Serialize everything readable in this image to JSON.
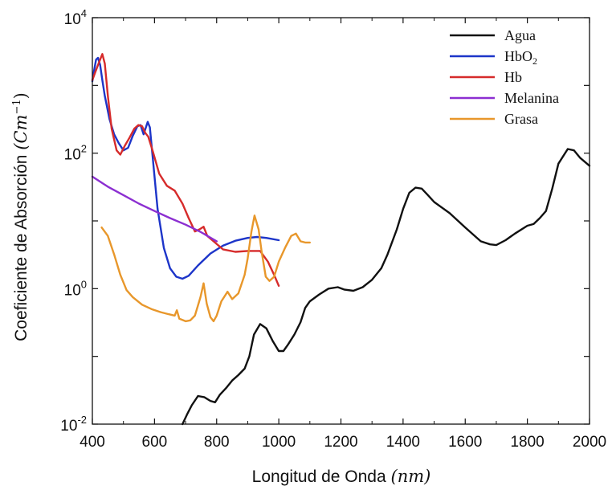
{
  "chart_data": {
    "type": "line",
    "xlabel": "Longitud de Onda",
    "xlabel_unit": "(nm)",
    "ylabel": "Coeficiente de Absorción",
    "ylabel_unit": "(Cm",
    "ylabel_unit_exp": "−1",
    "ylabel_unit_close": ")",
    "xlim": [
      400,
      2000
    ],
    "ylim": [
      0.01,
      10000
    ],
    "yscale": "log",
    "grid": false,
    "legend_position": "top-right",
    "x_ticks": [
      400,
      600,
      800,
      1000,
      1200,
      1400,
      1600,
      1800,
      2000
    ],
    "y_ticks": [
      {
        "value": 0.01,
        "base": "10",
        "exp": "-2"
      },
      {
        "value": 1,
        "base": "10",
        "exp": "0"
      },
      {
        "value": 100,
        "base": "10",
        "exp": "2"
      },
      {
        "value": 10000,
        "base": "10",
        "exp": "4"
      }
    ],
    "series": [
      {
        "name": "Agua",
        "color": "#111111",
        "points": [
          [
            690,
            0.01
          ],
          [
            705,
            0.014
          ],
          [
            720,
            0.019
          ],
          [
            740,
            0.026
          ],
          [
            760,
            0.025
          ],
          [
            780,
            0.022
          ],
          [
            795,
            0.021
          ],
          [
            810,
            0.027
          ],
          [
            830,
            0.034
          ],
          [
            850,
            0.044
          ],
          [
            870,
            0.053
          ],
          [
            890,
            0.066
          ],
          [
            905,
            0.1
          ],
          [
            920,
            0.21
          ],
          [
            940,
            0.3
          ],
          [
            960,
            0.26
          ],
          [
            980,
            0.17
          ],
          [
            1000,
            0.12
          ],
          [
            1015,
            0.12
          ],
          [
            1030,
            0.15
          ],
          [
            1050,
            0.21
          ],
          [
            1070,
            0.32
          ],
          [
            1085,
            0.52
          ],
          [
            1100,
            0.65
          ],
          [
            1130,
            0.82
          ],
          [
            1160,
            1.0
          ],
          [
            1190,
            1.05
          ],
          [
            1210,
            0.97
          ],
          [
            1240,
            0.93
          ],
          [
            1270,
            1.05
          ],
          [
            1300,
            1.35
          ],
          [
            1330,
            2.0
          ],
          [
            1350,
            3.2
          ],
          [
            1380,
            7.5
          ],
          [
            1400,
            15
          ],
          [
            1420,
            26
          ],
          [
            1440,
            31
          ],
          [
            1460,
            30
          ],
          [
            1480,
            24
          ],
          [
            1500,
            19
          ],
          [
            1550,
            13
          ],
          [
            1600,
            8
          ],
          [
            1650,
            5
          ],
          [
            1680,
            4.5
          ],
          [
            1700,
            4.4
          ],
          [
            1730,
            5.2
          ],
          [
            1760,
            6.5
          ],
          [
            1800,
            8.5
          ],
          [
            1820,
            9
          ],
          [
            1840,
            11
          ],
          [
            1860,
            14
          ],
          [
            1880,
            30
          ],
          [
            1900,
            70
          ],
          [
            1930,
            115
          ],
          [
            1950,
            110
          ],
          [
            1970,
            85
          ],
          [
            2000,
            65
          ]
        ]
      },
      {
        "name": "HbO",
        "name_sub": "2",
        "color": "#1d35c9",
        "points": [
          [
            400,
            1150
          ],
          [
            405,
            1600
          ],
          [
            412,
            2400
          ],
          [
            418,
            2550
          ],
          [
            425,
            2000
          ],
          [
            432,
            1200
          ],
          [
            440,
            700
          ],
          [
            455,
            320
          ],
          [
            470,
            190
          ],
          [
            485,
            140
          ],
          [
            500,
            110
          ],
          [
            515,
            120
          ],
          [
            530,
            180
          ],
          [
            545,
            250
          ],
          [
            555,
            260
          ],
          [
            565,
            190
          ],
          [
            578,
            290
          ],
          [
            585,
            240
          ],
          [
            595,
            80
          ],
          [
            610,
            15
          ],
          [
            630,
            4
          ],
          [
            650,
            2
          ],
          [
            670,
            1.5
          ],
          [
            690,
            1.4
          ],
          [
            710,
            1.55
          ],
          [
            740,
            2.2
          ],
          [
            780,
            3.3
          ],
          [
            820,
            4.3
          ],
          [
            860,
            5.1
          ],
          [
            900,
            5.6
          ],
          [
            930,
            5.8
          ],
          [
            960,
            5.6
          ],
          [
            1000,
            5.2
          ]
        ]
      },
      {
        "name": "Hb",
        "name_sub": "",
        "color": "#d62b2b",
        "points": [
          [
            400,
            1200
          ],
          [
            410,
            1600
          ],
          [
            420,
            2100
          ],
          [
            432,
            2900
          ],
          [
            440,
            2100
          ],
          [
            450,
            700
          ],
          [
            462,
            230
          ],
          [
            478,
            110
          ],
          [
            490,
            95
          ],
          [
            505,
            130
          ],
          [
            520,
            170
          ],
          [
            535,
            230
          ],
          [
            548,
            260
          ],
          [
            560,
            250
          ],
          [
            570,
            200
          ],
          [
            580,
            175
          ],
          [
            595,
            105
          ],
          [
            615,
            50
          ],
          [
            640,
            33
          ],
          [
            665,
            28
          ],
          [
            690,
            18
          ],
          [
            710,
            11
          ],
          [
            730,
            7
          ],
          [
            745,
            7.5
          ],
          [
            758,
            8.2
          ],
          [
            770,
            6
          ],
          [
            790,
            5
          ],
          [
            820,
            3.8
          ],
          [
            860,
            3.5
          ],
          [
            900,
            3.6
          ],
          [
            940,
            3.6
          ],
          [
            965,
            2.5
          ],
          [
            985,
            1.6
          ],
          [
            1000,
            1.1
          ]
        ]
      },
      {
        "name": "Melanina",
        "name_sub": "",
        "color": "#8c2fd1",
        "points": [
          [
            400,
            45
          ],
          [
            450,
            32
          ],
          [
            500,
            24
          ],
          [
            550,
            18
          ],
          [
            600,
            14
          ],
          [
            650,
            11
          ],
          [
            700,
            8.8
          ],
          [
            750,
            6.8
          ],
          [
            800,
            5
          ]
        ]
      },
      {
        "name": "Grasa",
        "name_sub": "",
        "color": "#e8972b",
        "points": [
          [
            430,
            8
          ],
          [
            450,
            6
          ],
          [
            470,
            3.2
          ],
          [
            490,
            1.6
          ],
          [
            510,
            0.95
          ],
          [
            530,
            0.75
          ],
          [
            560,
            0.58
          ],
          [
            590,
            0.5
          ],
          [
            620,
            0.45
          ],
          [
            645,
            0.42
          ],
          [
            665,
            0.4
          ],
          [
            672,
            0.48
          ],
          [
            680,
            0.36
          ],
          [
            700,
            0.33
          ],
          [
            715,
            0.34
          ],
          [
            730,
            0.4
          ],
          [
            748,
            0.75
          ],
          [
            758,
            1.2
          ],
          [
            768,
            0.6
          ],
          [
            780,
            0.38
          ],
          [
            790,
            0.33
          ],
          [
            800,
            0.4
          ],
          [
            815,
            0.65
          ],
          [
            835,
            0.9
          ],
          [
            850,
            0.7
          ],
          [
            870,
            0.85
          ],
          [
            890,
            1.6
          ],
          [
            900,
            2.8
          ],
          [
            912,
            7
          ],
          [
            922,
            12
          ],
          [
            935,
            7.5
          ],
          [
            945,
            3.5
          ],
          [
            958,
            1.5
          ],
          [
            970,
            1.3
          ],
          [
            985,
            1.5
          ],
          [
            1000,
            2.5
          ],
          [
            1020,
            4
          ],
          [
            1040,
            6
          ],
          [
            1055,
            6.5
          ],
          [
            1070,
            5
          ],
          [
            1085,
            4.8
          ],
          [
            1100,
            4.8
          ]
        ]
      }
    ]
  }
}
